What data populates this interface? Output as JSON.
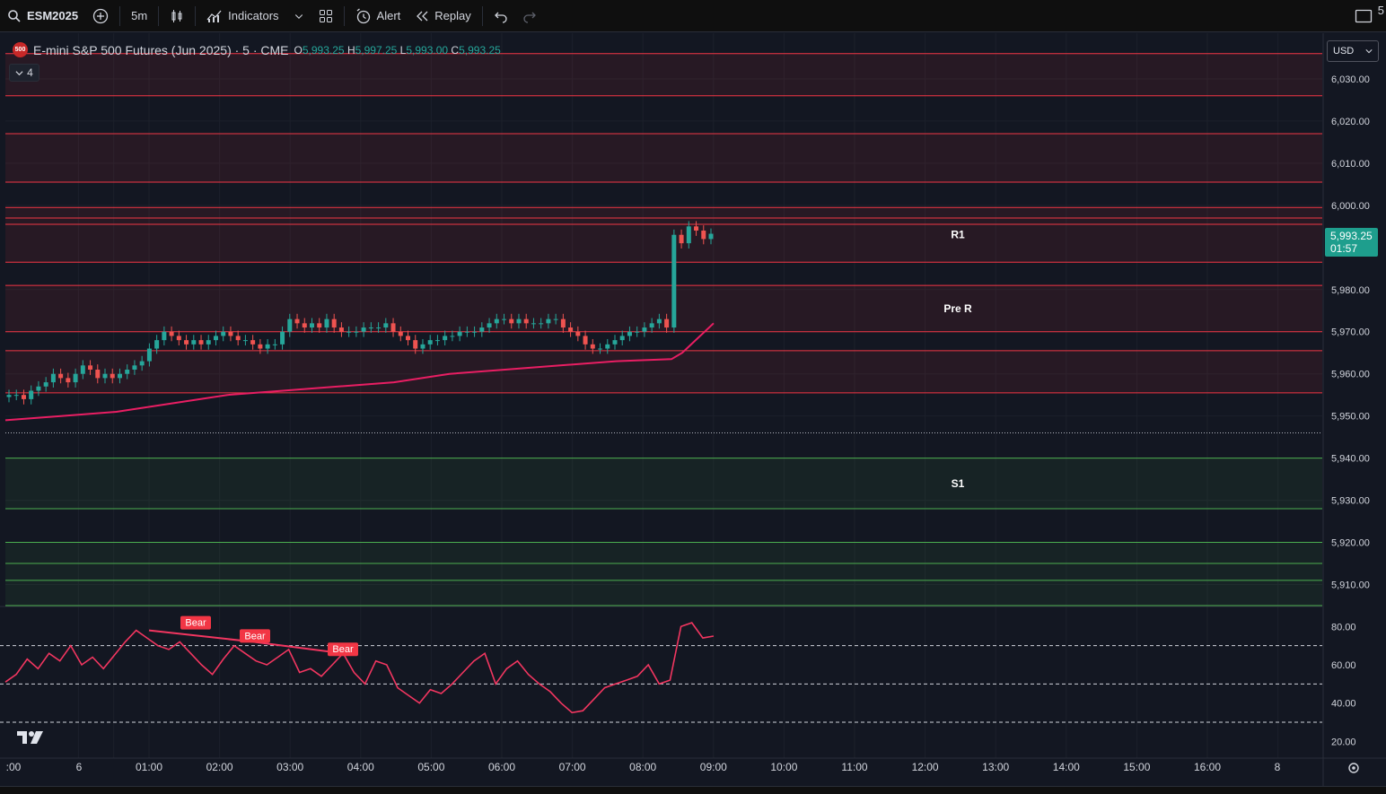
{
  "toolbar": {
    "symbol": "ESM2025",
    "interval": "5m",
    "indicators_label": "Indicators",
    "alert_label": "Alert",
    "replay_label": "Replay",
    "corner_text": "5"
  },
  "legend": {
    "title": "E-mini S&P 500 Futures (Jun 2025) · 5 · CME",
    "badge": "500",
    "o_label": "O",
    "o_value": "5,993.25",
    "h_label": "H",
    "h_value": "5,997.25",
    "l_label": "L",
    "l_value": "5,993.00",
    "c_label": "C",
    "c_value": "5,993.25",
    "collapsed_count": "4"
  },
  "currency": "USD",
  "price_badge": {
    "price": "5,993.25",
    "countdown": "01:57"
  },
  "colors": {
    "bg": "#131722",
    "up": "#26a69a",
    "down": "#ef5350",
    "resistance": "#f23645",
    "support": "#4caf50",
    "vwap": "#e91e63",
    "rsi": "#f23660"
  },
  "chart_data": {
    "type": "candlestick",
    "y_axis": {
      "min": 5905,
      "max": 6040,
      "ticks": [
        6030,
        6020,
        6010,
        6000,
        5980,
        5970,
        5960,
        5950,
        5940,
        5930,
        5920,
        5910
      ],
      "tick_labels": [
        "6,030.00",
        "6,020.00",
        "6,010.00",
        "6,000.00",
        "5,980.00",
        "5,970.00",
        "5,960.00",
        "5,950.00",
        "5,940.00",
        "5,930.00",
        "5,920.00",
        "5,910.00"
      ]
    },
    "x_axis": {
      "labels": [
        ":00",
        "6",
        "01:00",
        "02:00",
        "03:00",
        "04:00",
        "05:00",
        "06:00",
        "07:00",
        "08:00",
        "09:00",
        "10:00",
        "11:00",
        "12:00",
        "13:00",
        "14:00",
        "15:00",
        "16:00",
        "8"
      ],
      "hours": [
        -1,
        -0.5,
        0,
        1,
        2,
        3,
        4,
        5,
        6,
        7,
        8,
        9,
        10,
        11,
        12,
        13,
        14,
        15,
        16
      ]
    },
    "zones": [
      {
        "type": "resistance",
        "top": 6036,
        "bottom": 6026
      },
      {
        "type": "resistance",
        "top": 6017,
        "bottom": 6005.5
      },
      {
        "type": "resistance",
        "label": "R1",
        "top": 5999.5,
        "bottom": 5986.5
      },
      {
        "type": "resistance",
        "label": "Pre R",
        "top": 5981,
        "bottom": 5970
      },
      {
        "type": "resistance",
        "top": 5965.5,
        "bottom": 5955.5
      },
      {
        "type": "support",
        "label": "S1",
        "top": 5940,
        "bottom": 5928
      },
      {
        "type": "support",
        "top": 5920,
        "bottom": 5905
      }
    ],
    "levels": [
      {
        "type": "resistance",
        "price": 5997
      },
      {
        "type": "resistance",
        "price": 5995.5
      },
      {
        "type": "support",
        "price": 5915
      },
      {
        "type": "support",
        "price": 5911
      }
    ],
    "dotted_level": 5946,
    "current_price": 5993.25,
    "candles_close": [
      5955,
      5955,
      5954,
      5956,
      5957,
      5958,
      5960,
      5959,
      5958,
      5960,
      5962,
      5961,
      5959,
      5960,
      5959,
      5960,
      5961,
      5962,
      5963,
      5966,
      5968,
      5970,
      5969,
      5968,
      5967,
      5968,
      5967,
      5968,
      5969,
      5970,
      5969,
      5968,
      5968,
      5967,
      5966,
      5967,
      5967,
      5970,
      5973,
      5972,
      5971,
      5972,
      5971,
      5973,
      5971,
      5970,
      5970,
      5970,
      5971,
      5971,
      5971,
      5972,
      5970,
      5969,
      5968,
      5966,
      5967,
      5968,
      5968,
      5969,
      5969,
      5970,
      5970,
      5970,
      5971,
      5972,
      5973,
      5973,
      5972,
      5973,
      5972,
      5972,
      5972,
      5973,
      5973,
      5971,
      5970,
      5969,
      5967,
      5966,
      5966,
      5967,
      5968,
      5969,
      5970,
      5970,
      5971,
      5972,
      5973,
      5971,
      5993,
      5991,
      5995,
      5994,
      5992,
      5993.25
    ],
    "vwap": [
      5949,
      5950,
      5951,
      5953,
      5955,
      5956,
      5957,
      5958,
      5960,
      5961,
      5962,
      5963,
      5963.5,
      5965,
      5972
    ],
    "rsi": {
      "min": 15,
      "max": 90,
      "levels": [
        70,
        50,
        30
      ],
      "ticks": [
        80,
        60,
        40,
        20
      ],
      "tick_labels": [
        "80.00",
        "60.00",
        "40.00",
        "20.00"
      ],
      "values": [
        51,
        55,
        63,
        58,
        66,
        62,
        70,
        60,
        64,
        58,
        65,
        72,
        78,
        74,
        70,
        68,
        72,
        66,
        60,
        55,
        63,
        70,
        66,
        62,
        60,
        64,
        68,
        56,
        58,
        54,
        60,
        66,
        56,
        50,
        62,
        60,
        48,
        44,
        40,
        47,
        45,
        50,
        56,
        62,
        66,
        50,
        58,
        62,
        55,
        50,
        46,
        40,
        35,
        36,
        42,
        48,
        50,
        52,
        54,
        60,
        50,
        52,
        80,
        82,
        74,
        75
      ],
      "bear_labels": [
        "Bear",
        "Bear",
        "Bear"
      ]
    }
  }
}
